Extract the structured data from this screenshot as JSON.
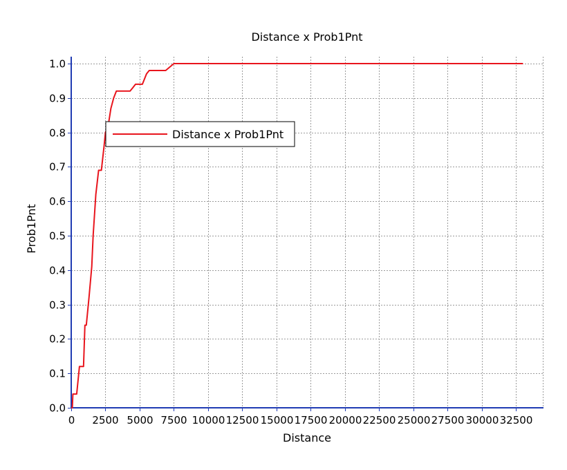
{
  "chart_data": {
    "type": "line",
    "title": "Distance x Prob1Pnt",
    "xlabel": "Distance",
    "ylabel": "Prob1Pnt",
    "xlim": [
      0,
      34500
    ],
    "ylim": [
      0,
      1.0
    ],
    "x_ticks": [
      0,
      2500,
      5000,
      7500,
      10000,
      12500,
      15000,
      17500,
      20000,
      22500,
      25000,
      27500,
      30000,
      32500
    ],
    "x_tick_labels": [
      "0",
      "2500",
      "5000",
      "7500",
      "10000",
      "12500",
      "15000",
      "17500",
      "20000",
      "22500",
      "25000",
      "27500",
      "30000",
      "32500"
    ],
    "y_ticks": [
      0,
      0.1,
      0.2,
      0.3,
      0.4,
      0.5,
      0.6,
      0.7,
      0.8,
      0.9,
      1.0
    ],
    "y_tick_labels": [
      "0.0",
      "0.1",
      "0.2",
      "0.3",
      "0.4",
      "0.5",
      "0.6",
      "0.7",
      "0.8",
      "0.9",
      "1.0"
    ],
    "grid": true,
    "legend_position": "upper-left",
    "series": [
      {
        "name": "Distance x Prob1Pnt",
        "color": "#e8141c",
        "x": [
          0,
          80,
          120,
          400,
          500,
          600,
          700,
          900,
          1000,
          1100,
          1300,
          1500,
          1600,
          1800,
          2000,
          2200,
          2400,
          2500,
          2700,
          2900,
          3100,
          3300,
          3500,
          4300,
          4500,
          4700,
          5000,
          5200,
          5300,
          5500,
          5700,
          6700,
          6900,
          7200,
          7500,
          10000,
          20000,
          30000,
          33000
        ],
        "y": [
          0.0,
          0.0,
          0.04,
          0.04,
          0.08,
          0.12,
          0.12,
          0.12,
          0.24,
          0.24,
          0.32,
          0.41,
          0.5,
          0.62,
          0.69,
          0.69,
          0.76,
          0.8,
          0.82,
          0.87,
          0.9,
          0.92,
          0.92,
          0.92,
          0.93,
          0.94,
          0.94,
          0.94,
          0.95,
          0.97,
          0.98,
          0.98,
          0.98,
          0.99,
          1.0,
          1.0,
          1.0,
          1.0,
          1.0
        ]
      }
    ]
  },
  "colors": {
    "axis": "#1f3bb3",
    "grid": "#9a9a9a",
    "series": "#e8141c"
  }
}
